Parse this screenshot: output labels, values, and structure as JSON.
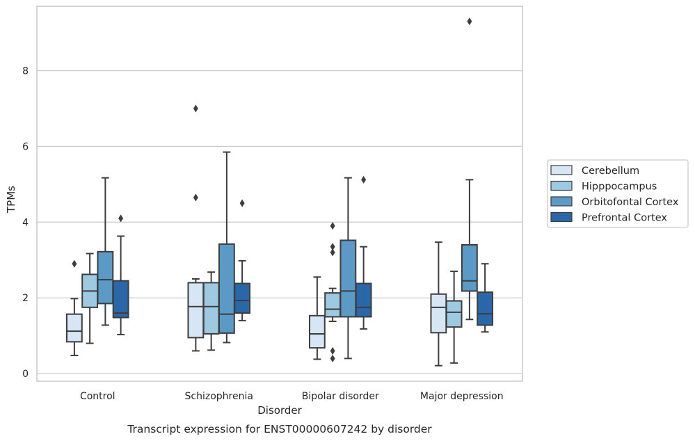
{
  "chart_data": {
    "type": "box",
    "title": "Transcript expression for ENST00000607242 by disorder",
    "xlabel": "Disorder",
    "ylabel": "TPMs",
    "ylim": [
      -0.2,
      9.7
    ],
    "yticks": [
      0,
      2,
      4,
      6,
      8
    ],
    "grid": true,
    "legend_position": "right",
    "categories": [
      "Control",
      "Schizophrenia",
      "Bipolar disorder",
      "Major depression"
    ],
    "series": [
      {
        "name": "Cerebellum",
        "color": "#d6e6f4",
        "boxes": [
          {
            "whisker_low": 0.48,
            "q1": 0.84,
            "median": 1.12,
            "q3": 1.57,
            "whisker_high": 1.98,
            "outliers": [
              2.9
            ]
          },
          {
            "whisker_low": 0.6,
            "q1": 0.95,
            "median": 1.77,
            "q3": 2.4,
            "whisker_high": 2.5,
            "outliers": [
              4.65,
              7.0
            ]
          },
          {
            "whisker_low": 0.38,
            "q1": 0.68,
            "median": 1.05,
            "q3": 1.53,
            "whisker_high": 2.55,
            "outliers": []
          },
          {
            "whisker_low": 0.21,
            "q1": 1.08,
            "median": 1.75,
            "q3": 2.1,
            "whisker_high": 3.47,
            "outliers": []
          }
        ]
      },
      {
        "name": "Hipppocampus",
        "color": "#9dc9e1",
        "boxes": [
          {
            "whisker_low": 0.8,
            "q1": 1.75,
            "median": 2.18,
            "q3": 2.62,
            "whisker_high": 3.17,
            "outliers": []
          },
          {
            "whisker_low": 0.62,
            "q1": 1.05,
            "median": 1.77,
            "q3": 2.4,
            "whisker_high": 2.68,
            "outliers": []
          },
          {
            "whisker_low": 1.38,
            "q1": 1.5,
            "median": 1.7,
            "q3": 2.13,
            "whisker_high": 2.25,
            "outliers": [
              0.4,
              0.6,
              3.2,
              3.35,
              3.9
            ]
          },
          {
            "whisker_low": 0.28,
            "q1": 1.23,
            "median": 1.62,
            "q3": 1.92,
            "whisker_high": 2.7,
            "outliers": []
          }
        ]
      },
      {
        "name": "Orbitofontal Cortex",
        "color": "#5b99c7",
        "boxes": [
          {
            "whisker_low": 1.28,
            "q1": 1.85,
            "median": 2.48,
            "q3": 3.22,
            "whisker_high": 5.17,
            "outliers": []
          },
          {
            "whisker_low": 0.82,
            "q1": 1.07,
            "median": 1.57,
            "q3": 3.42,
            "whisker_high": 5.85,
            "outliers": []
          },
          {
            "whisker_low": 0.4,
            "q1": 1.5,
            "median": 2.18,
            "q3": 3.52,
            "whisker_high": 5.17,
            "outliers": []
          },
          {
            "whisker_low": 1.43,
            "q1": 2.18,
            "median": 2.45,
            "q3": 3.4,
            "whisker_high": 5.12,
            "outliers": [
              9.3
            ]
          }
        ]
      },
      {
        "name": "Prefrontal Cortex",
        "color": "#2a67a9",
        "boxes": [
          {
            "whisker_low": 1.03,
            "q1": 1.48,
            "median": 1.6,
            "q3": 2.45,
            "whisker_high": 3.63,
            "outliers": [
              4.1
            ]
          },
          {
            "whisker_low": 1.4,
            "q1": 1.6,
            "median": 1.93,
            "q3": 2.38,
            "whisker_high": 2.98,
            "outliers": [
              4.5
            ]
          },
          {
            "whisker_low": 1.18,
            "q1": 1.5,
            "median": 1.75,
            "q3": 2.38,
            "whisker_high": 3.35,
            "outliers": [
              5.12
            ]
          },
          {
            "whisker_low": 1.1,
            "q1": 1.28,
            "median": 1.58,
            "q3": 2.15,
            "whisker_high": 2.9,
            "outliers": []
          }
        ]
      }
    ]
  }
}
